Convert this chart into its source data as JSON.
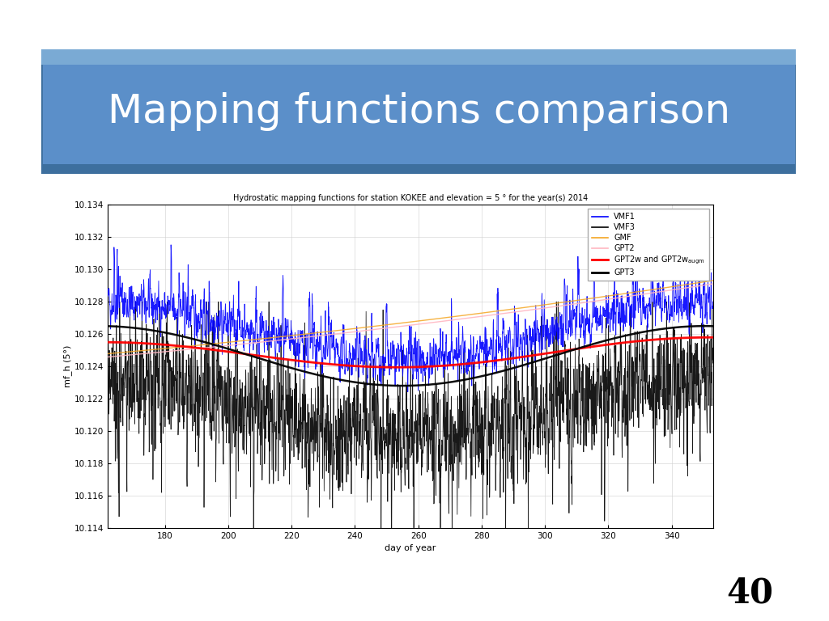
{
  "title": "Mapping functions comparison",
  "title_bg_color": "#5b8fc9",
  "title_text_color": "white",
  "chart_title": "Hydrostatic mapping functions for station KOKEE and elevation = 5 ° for the year(s) 2014",
  "xlabel": "day of year",
  "ylabel": "mf_h (5°)",
  "xmin": 162,
  "xmax": 353,
  "ymin": 10.114,
  "ymax": 10.134,
  "xticks": [
    180,
    200,
    220,
    240,
    260,
    280,
    300,
    320,
    340
  ],
  "yticks": [
    10.114,
    10.116,
    10.118,
    10.12,
    10.122,
    10.124,
    10.126,
    10.128,
    10.13,
    10.132,
    10.134
  ],
  "legend_labels": [
    "VMF1",
    "VMF3",
    "GMF",
    "GPT2",
    "GPT2w and GPT2w_augm",
    "GPT3"
  ],
  "legend_colors": [
    "blue",
    "black",
    "orange",
    "pink",
    "red",
    "black"
  ],
  "page_number": "40",
  "background_color": "white",
  "random_seed": 42
}
